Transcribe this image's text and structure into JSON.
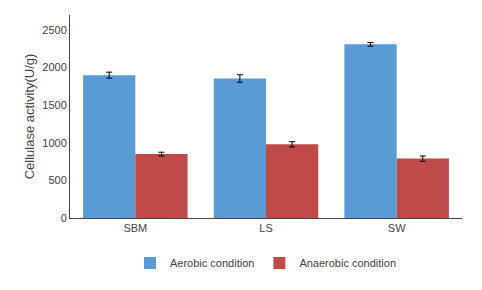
{
  "chart_data": {
    "type": "bar",
    "categories": [
      "SBM",
      "LS",
      "SW"
    ],
    "series": [
      {
        "name": "Aerobic condition",
        "color": "#5B9BD5",
        "values": [
          1900,
          1855,
          2310
        ],
        "errors": [
          40,
          50,
          25
        ]
      },
      {
        "name": "Anaerobic condition",
        "color": "#BE4B48",
        "values": [
          850,
          980,
          790
        ],
        "errors": [
          25,
          35,
          35
        ]
      }
    ],
    "ylabel": "Cellulase activity(U/g)",
    "ylim": [
      0,
      2700
    ],
    "yticks": [
      0,
      500,
      1000,
      1500,
      2000,
      2500
    ],
    "grid": false,
    "legend": "bottom"
  }
}
